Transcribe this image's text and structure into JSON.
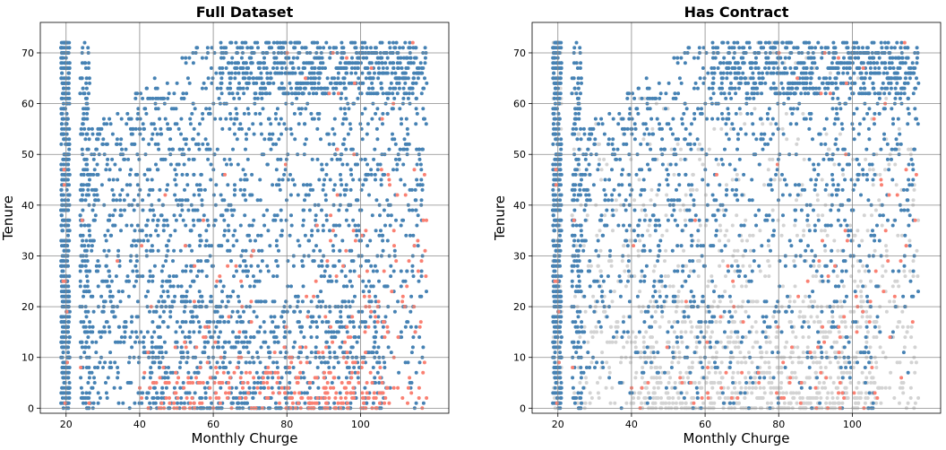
{
  "chart_data": [
    {
      "type": "scatter",
      "title": "Full Dataset",
      "xlabel": "Monthly Churge",
      "ylabel": "Tenure",
      "xlim": [
        13,
        124
      ],
      "ylim": [
        -1,
        76
      ],
      "xticks": [
        20,
        40,
        60,
        80,
        100
      ],
      "yticks": [
        0,
        10,
        20,
        30,
        40,
        50,
        60,
        70
      ],
      "grid": true,
      "colors": {
        "retained": "#4682b4",
        "churned": "#fa8072"
      }
    },
    {
      "type": "scatter",
      "title": "Has Contract",
      "xlabel": "Monthly Churge",
      "ylabel": "Tenure",
      "xlim": [
        13,
        124
      ],
      "ylim": [
        -1,
        76
      ],
      "xticks": [
        20,
        40,
        60,
        80,
        100
      ],
      "yticks": [
        0,
        10,
        20,
        30,
        40,
        50,
        60,
        70
      ],
      "grid": true,
      "colors": {
        "retained": "#4682b4",
        "churned": "#fa8072",
        "no_contract": "#d3d3d3"
      }
    }
  ]
}
